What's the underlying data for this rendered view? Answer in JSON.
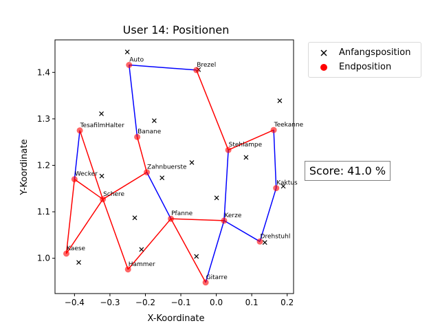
{
  "chart_data": {
    "type": "scatter",
    "title": "User 14: Positionen",
    "xlabel": "X-Koordinate",
    "ylabel": "Y-Koordinate",
    "xlim": [
      -0.455,
      0.218
    ],
    "ylim": [
      0.924,
      1.47
    ],
    "xticks": [
      -0.4,
      -0.3,
      -0.2,
      -0.1,
      0.0,
      0.1,
      0.2
    ],
    "xtick_labels": [
      "−0.4",
      "−0.3",
      "−0.2",
      "−0.1",
      "0.0",
      "0.1",
      "0.2"
    ],
    "yticks": [
      1.0,
      1.1,
      1.2,
      1.3,
      1.4
    ],
    "ytick_labels": [
      "1.0",
      "1.1",
      "1.2",
      "1.3",
      "1.4"
    ],
    "grid": false,
    "legend_position": "outside-right-top",
    "legend": [
      {
        "label": "Anfangsposition",
        "marker": "x",
        "color": "#000000"
      },
      {
        "label": "Endposition",
        "marker": "o",
        "color": "#ff0000"
      }
    ],
    "score_text": "Score: 41.0 %",
    "points": [
      {
        "label": "Auto",
        "start": [
          -0.251,
          1.444
        ],
        "end": [
          -0.246,
          1.416
        ]
      },
      {
        "label": "Brezel",
        "start": [
          -0.05,
          1.406
        ],
        "end": [
          -0.056,
          1.405
        ]
      },
      {
        "label": "TesafilmHalter",
        "start": [
          -0.324,
          1.311
        ],
        "end": [
          -0.385,
          1.275
        ]
      },
      {
        "label": "Banane",
        "start": [
          -0.175,
          1.296
        ],
        "end": [
          -0.223,
          1.261
        ]
      },
      {
        "label": "Teekanne",
        "start": [
          0.179,
          1.339
        ],
        "end": [
          0.162,
          1.276
        ]
      },
      {
        "label": "Stehlampe",
        "start": [
          0.084,
          1.217
        ],
        "end": [
          0.034,
          1.233
        ]
      },
      {
        "label": "Zahnbuerste",
        "start": [
          -0.069,
          1.206
        ],
        "end": [
          -0.196,
          1.185
        ]
      },
      {
        "label": "Wecker",
        "start": [
          -0.323,
          1.177
        ],
        "end": [
          -0.4,
          1.17
        ]
      },
      {
        "label": "Kaktus",
        "start": [
          0.189,
          1.155
        ],
        "end": [
          0.169,
          1.151
        ]
      },
      {
        "label": "Schere",
        "start": [
          -0.153,
          1.173
        ],
        "end": [
          -0.32,
          1.127
        ]
      },
      {
        "label": "Pfanne",
        "start": [
          -0.23,
          1.087
        ],
        "end": [
          -0.128,
          1.085
        ]
      },
      {
        "label": "Kerze",
        "start": [
          0.001,
          1.13
        ],
        "end": [
          0.022,
          1.081
        ]
      },
      {
        "label": "Drehstuhl",
        "start": [
          0.137,
          1.034
        ],
        "end": [
          0.123,
          1.036
        ]
      },
      {
        "label": "Kaese",
        "start": [
          -0.388,
          0.991
        ],
        "end": [
          -0.423,
          1.01
        ]
      },
      {
        "label": "Hammer",
        "start": [
          -0.211,
          1.019
        ],
        "end": [
          -0.249,
          0.976
        ]
      },
      {
        "label": "Gitarre",
        "start": [
          -0.056,
          1.004
        ],
        "end": [
          -0.03,
          0.948
        ]
      }
    ],
    "edges": [
      {
        "from": "Auto",
        "to": "Brezel",
        "color": "#0000ff"
      },
      {
        "from": "Auto",
        "to": "Banane",
        "color": "#0000ff"
      },
      {
        "from": "Brezel",
        "to": "Stehlampe",
        "color": "#ff0000"
      },
      {
        "from": "TesafilmHalter",
        "to": "Wecker",
        "color": "#0000ff"
      },
      {
        "from": "TesafilmHalter",
        "to": "Schere",
        "color": "#ff0000"
      },
      {
        "from": "Banane",
        "to": "Zahnbuerste",
        "color": "#ff0000"
      },
      {
        "from": "Zahnbuerste",
        "to": "Schere",
        "color": "#ff0000"
      },
      {
        "from": "Zahnbuerste",
        "to": "Pfanne",
        "color": "#0000ff"
      },
      {
        "from": "Wecker",
        "to": "Schere",
        "color": "#ff0000"
      },
      {
        "from": "Wecker",
        "to": "Kaese",
        "color": "#ff0000"
      },
      {
        "from": "Schere",
        "to": "Kaese",
        "color": "#ff0000"
      },
      {
        "from": "Schere",
        "to": "Hammer",
        "color": "#ff0000"
      },
      {
        "from": "Hammer",
        "to": "Pfanne",
        "color": "#ff0000"
      },
      {
        "from": "Pfanne",
        "to": "Kerze",
        "color": "#ff0000"
      },
      {
        "from": "Pfanne",
        "to": "Gitarre",
        "color": "#ff0000"
      },
      {
        "from": "Gitarre",
        "to": "Kerze",
        "color": "#0000ff"
      },
      {
        "from": "Kerze",
        "to": "Stehlampe",
        "color": "#0000ff"
      },
      {
        "from": "Kerze",
        "to": "Drehstuhl",
        "color": "#0000ff"
      },
      {
        "from": "Stehlampe",
        "to": "Teekanne",
        "color": "#ff0000"
      },
      {
        "from": "Teekanne",
        "to": "Kaktus",
        "color": "#0000ff"
      },
      {
        "from": "Kaktus",
        "to": "Drehstuhl",
        "color": "#0000ff"
      }
    ]
  }
}
